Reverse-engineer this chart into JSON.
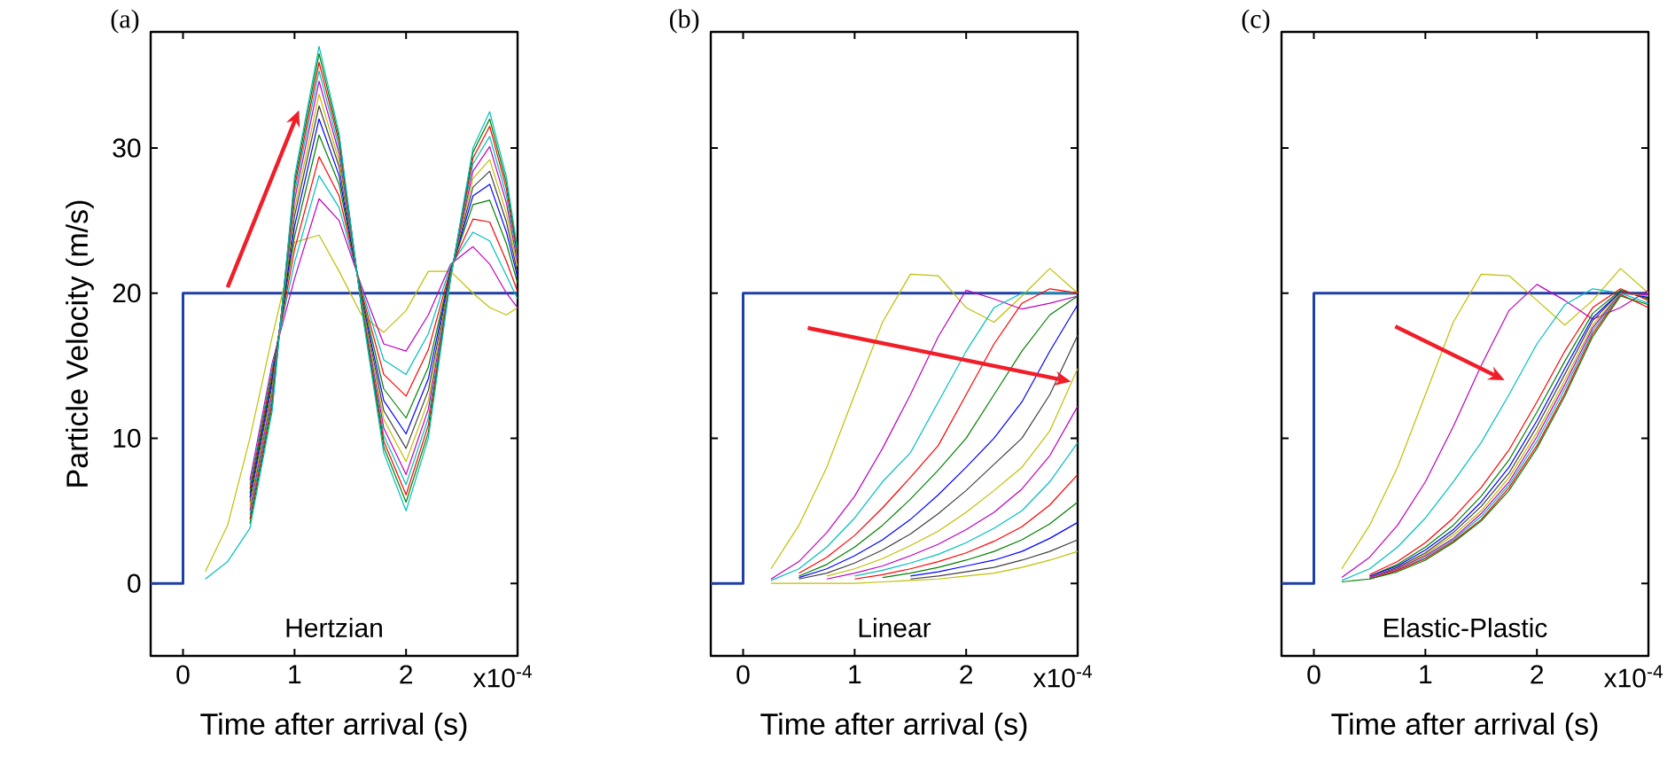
{
  "chart_data": [
    {
      "type": "line",
      "title": "(a)",
      "xlabel": "Time after arrival (s)",
      "ylabel": "Particle Velocity (m/s)",
      "annotations": [
        "Hertzian",
        "x10$^{-4}$"
      ],
      "x": [
        0.2,
        0.4,
        0.6,
        0.8,
        1.0,
        1.22,
        1.4,
        1.6,
        1.8,
        2.0,
        2.2,
        2.4,
        2.6,
        2.75,
        2.9,
        3.0
      ],
      "xlim": [
        -0.29,
        3.0
      ],
      "ylim": [
        -5,
        38
      ],
      "xticks": [
        0,
        1,
        2
      ],
      "yticks": [
        0,
        10,
        20,
        30
      ],
      "series": [
        {
          "color": "#1f3fa8",
          "x": [
            -0.29,
            0,
            0,
            3.0
          ],
          "values": [
            0,
            0,
            20,
            20
          ]
        },
        {
          "color": "#bfbf00",
          "values": [
            0.8,
            4,
            10,
            17,
            23.5,
            24,
            21.5,
            18.5,
            17.3,
            18.8,
            21.5,
            21.5,
            20,
            19,
            18.5,
            19
          ]
        },
        {
          "color": "#bf00bf",
          "values": [
            null,
            null,
            7.1,
            15.2,
            21,
            26.5,
            25,
            20.5,
            16.5,
            16,
            18.5,
            22,
            23.2,
            22,
            20,
            19
          ]
        },
        {
          "color": "#00bfbf",
          "values": [
            null,
            null,
            6.8,
            14.9,
            22.1,
            28.1,
            25.9,
            20.3,
            15.4,
            14.4,
            17.2,
            21.9,
            24.2,
            23.6,
            21.2,
            19.6
          ]
        },
        {
          "color": "#ff0000",
          "values": [
            null,
            null,
            6.5,
            14.6,
            23.0,
            29.4,
            26.7,
            20.1,
            14.4,
            12.9,
            16.1,
            21.7,
            25.1,
            24.9,
            22.2,
            20.1
          ]
        },
        {
          "color": "#008000",
          "values": [
            null,
            null,
            6.2,
            14.3,
            23.9,
            30.9,
            27.5,
            19.9,
            13.4,
            11.4,
            14.9,
            21.6,
            26.1,
            26.4,
            23.4,
            20.7
          ]
        },
        {
          "color": "#0000ff",
          "values": [
            null,
            null,
            5.9,
            14.0,
            24.6,
            32.0,
            28.1,
            19.7,
            12.6,
            10.3,
            14.1,
            21.5,
            26.7,
            27.5,
            24.2,
            21.1
          ]
        },
        {
          "color": "#404040",
          "values": [
            null,
            null,
            5.6,
            13.7,
            25.3,
            32.9,
            28.7,
            19.6,
            11.9,
            9.3,
            13.3,
            21.4,
            27.3,
            28.4,
            24.9,
            21.4
          ]
        },
        {
          "color": "#bfbf00",
          "values": [
            null,
            null,
            5.3,
            13.4,
            25.8,
            33.7,
            29.1,
            19.5,
            11.3,
            8.4,
            12.6,
            21.3,
            27.9,
            29.2,
            25.5,
            21.8
          ]
        },
        {
          "color": "#bf00bf",
          "values": [
            null,
            null,
            5.0,
            13.1,
            26.4,
            34.6,
            29.6,
            19.3,
            10.7,
            7.5,
            12.0,
            21.2,
            28.4,
            30.1,
            26.2,
            22.1
          ]
        },
        {
          "color": "#00bfbf",
          "values": [
            null,
            null,
            4.7,
            12.8,
            26.9,
            35.3,
            30.0,
            19.2,
            10.2,
            6.8,
            11.4,
            21.2,
            28.9,
            30.8,
            26.7,
            22.4
          ]
        },
        {
          "color": "#ff0000",
          "values": [
            null,
            null,
            4.4,
            12.5,
            27.3,
            35.9,
            30.4,
            19.2,
            9.8,
            6.1,
            10.9,
            21.1,
            29.3,
            31.5,
            27.2,
            22.6
          ]
        },
        {
          "color": "#008000",
          "values": [
            null,
            null,
            4.1,
            12.2,
            27.7,
            36.5,
            30.7,
            19.1,
            9.4,
            5.6,
            10.4,
            21.1,
            29.7,
            32.0,
            27.6,
            22.8
          ]
        },
        {
          "color": "#00bfbf",
          "values": [
            0.3,
            1.5,
            3.8,
            11.9,
            28,
            37,
            31,
            19,
            9,
            5,
            10,
            21,
            30,
            32.5,
            28,
            23
          ]
        }
      ]
    },
    {
      "type": "line",
      "title": "(b)",
      "xlabel": "Time after arrival (s)",
      "annotations": [
        "Linear",
        "x10$^{-4}$"
      ],
      "tick_labels": "x",
      "x": [
        0.25,
        0.5,
        0.75,
        1.0,
        1.25,
        1.5,
        1.75,
        2.0,
        2.25,
        2.5,
        2.75,
        3.0
      ],
      "xlim": [
        -0.29,
        3.0
      ],
      "ylim": [
        -5,
        38
      ],
      "xticks": [
        0,
        1,
        2
      ],
      "yticks": [
        0,
        10,
        20,
        30
      ],
      "series": [
        {
          "color": "#1f3fa8",
          "x": [
            -0.29,
            0,
            0,
            3.0
          ],
          "values": [
            0,
            0,
            20,
            20
          ]
        },
        {
          "color": "#bfbf00",
          "values": [
            1,
            4,
            8,
            13,
            18,
            21.3,
            21.2,
            19,
            18,
            19.8,
            21.7,
            20
          ]
        },
        {
          "color": "#bf00bf",
          "values": [
            0.3,
            1.5,
            3.5,
            6,
            9.3,
            13,
            17,
            20.2,
            19.6,
            18.9,
            19.3,
            19.8
          ]
        },
        {
          "color": "#00bfbf",
          "values": [
            0.2,
            1,
            2.5,
            4.5,
            7,
            9,
            12.5,
            16,
            19,
            20,
            20,
            20
          ]
        },
        {
          "color": "#ff0000",
          "values": [
            null,
            0.7,
            1.8,
            3.3,
            5.2,
            7.3,
            9.5,
            13,
            16.5,
            19.3,
            20.3,
            20
          ]
        },
        {
          "color": "#008000",
          "values": [
            null,
            0.5,
            1.3,
            2.5,
            4,
            5.8,
            7.8,
            10,
            13,
            16,
            18.5,
            19.8
          ]
        },
        {
          "color": "#0000ff",
          "values": [
            null,
            0.4,
            1,
            1.9,
            3,
            4.4,
            6.1,
            8,
            10,
            12.5,
            16,
            19.2
          ]
        },
        {
          "color": "#404040",
          "values": [
            null,
            0.3,
            0.7,
            1.4,
            2.3,
            3.4,
            4.8,
            6.4,
            8.2,
            10,
            13,
            17.1
          ]
        },
        {
          "color": "#bfbf00",
          "values": [
            null,
            null,
            0.5,
            1,
            1.7,
            2.6,
            3.6,
            4.9,
            6.4,
            8,
            10.5,
            14.8
          ]
        },
        {
          "color": "#bf00bf",
          "values": [
            null,
            null,
            0.3,
            0.7,
            1.2,
            1.9,
            2.7,
            3.7,
            4.9,
            6.5,
            8.8,
            12.2
          ]
        },
        {
          "color": "#00bfbf",
          "values": [
            null,
            null,
            null,
            0.5,
            0.9,
            1.4,
            2,
            2.8,
            3.8,
            5,
            7,
            9.7
          ]
        },
        {
          "color": "#ff0000",
          "values": [
            null,
            null,
            null,
            0.3,
            0.6,
            1,
            1.5,
            2.1,
            2.9,
            3.9,
            5.4,
            7.5
          ]
        },
        {
          "color": "#008000",
          "values": [
            null,
            null,
            null,
            null,
            0.4,
            0.7,
            1.1,
            1.6,
            2.2,
            3,
            4.1,
            5.6
          ]
        },
        {
          "color": "#0000ff",
          "values": [
            null,
            null,
            null,
            null,
            null,
            0.5,
            0.8,
            1.2,
            1.6,
            2.2,
            3.1,
            4.2
          ]
        },
        {
          "color": "#404040",
          "values": [
            null,
            null,
            null,
            null,
            null,
            0.3,
            0.5,
            0.8,
            1.1,
            1.6,
            2.2,
            3.0
          ]
        },
        {
          "color": "#bfbf00",
          "values": [
            0,
            0,
            0,
            0,
            0.1,
            0.2,
            0.3,
            0.5,
            0.7,
            1.1,
            1.6,
            2.2
          ]
        }
      ]
    },
    {
      "type": "line",
      "title": "(c)",
      "xlabel": "Time after arrival (s)",
      "annotations": [
        "Elastic-Plastic",
        "x10$^{-4}$"
      ],
      "tick_labels": "x",
      "x": [
        0.25,
        0.5,
        0.75,
        1.0,
        1.25,
        1.5,
        1.75,
        2.0,
        2.25,
        2.5,
        2.75,
        3.0
      ],
      "xlim": [
        -0.29,
        3.0
      ],
      "ylim": [
        -5,
        38
      ],
      "xticks": [
        0,
        1,
        2
      ],
      "yticks": [
        0,
        10,
        20,
        30
      ],
      "series": [
        {
          "color": "#1f3fa8",
          "x": [
            -0.29,
            0,
            0,
            3.0
          ],
          "values": [
            0,
            0,
            20,
            20
          ]
        },
        {
          "color": "#bfbf00",
          "values": [
            1,
            4,
            8,
            13,
            18,
            21.3,
            21.2,
            19.5,
            17.8,
            19.5,
            21.7,
            20
          ]
        },
        {
          "color": "#bf00bf",
          "values": [
            0.4,
            1.8,
            4,
            7,
            10.8,
            15,
            18.8,
            20.6,
            19.5,
            18.2,
            19,
            20.2
          ]
        },
        {
          "color": "#00bfbf",
          "values": [
            0.2,
            1,
            2.5,
            4.5,
            7,
            9.7,
            13,
            16.5,
            19.2,
            20.3,
            20,
            19.8
          ]
        },
        {
          "color": "#ff0000",
          "values": [
            null,
            0.6,
            1.5,
            2.8,
            4.5,
            6.6,
            9.2,
            12.5,
            16,
            19,
            20.3,
            19.5
          ]
        },
        {
          "color": "#008000",
          "values": [
            null,
            0.5,
            1.3,
            2.5,
            4,
            6,
            8.5,
            11.8,
            15.3,
            18.6,
            20.2,
            19.6
          ]
        },
        {
          "color": "#0000ff",
          "values": [
            null,
            0.5,
            1.2,
            2.3,
            3.7,
            5.6,
            8,
            11.2,
            14.8,
            18.3,
            20.1,
            19.7
          ]
        },
        {
          "color": "#404040",
          "values": [
            null,
            0.4,
            1.1,
            2.1,
            3.5,
            5.3,
            7.6,
            10.8,
            14.4,
            18.1,
            20.1,
            19.8
          ]
        },
        {
          "color": "#bfbf00",
          "values": [
            null,
            0.4,
            1,
            2,
            3.3,
            5,
            7.3,
            10.4,
            14,
            17.8,
            20,
            19.8
          ]
        },
        {
          "color": "#bf00bf",
          "values": [
            null,
            0.4,
            1,
            1.9,
            3.1,
            4.8,
            7,
            10.1,
            13.7,
            17.6,
            20,
            19.9
          ]
        },
        {
          "color": "#00bfbf",
          "values": [
            null,
            0.3,
            0.9,
            1.8,
            3,
            4.6,
            6.8,
            9.8,
            13.4,
            17.4,
            20,
            19.3
          ]
        },
        {
          "color": "#ff0000",
          "values": [
            null,
            0.3,
            0.9,
            1.7,
            2.9,
            4.4,
            6.6,
            9.5,
            13.1,
            17.2,
            19.9,
            19.0
          ]
        },
        {
          "color": "#008000",
          "values": [
            0.1,
            0.3,
            0.8,
            1.6,
            2.8,
            4.3,
            6.4,
            9.3,
            12.9,
            17,
            19.8,
            19.2
          ]
        }
      ]
    }
  ]
}
